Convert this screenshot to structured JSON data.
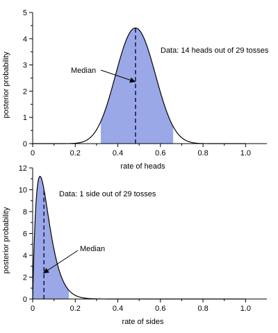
{
  "chart_data": [
    {
      "type": "area",
      "xlabel": "rate of heads",
      "ylabel": "posterior probability",
      "xlim": [
        0,
        1.1
      ],
      "ylim": [
        0,
        5
      ],
      "xticks": [
        "0",
        "0.2",
        "0.4",
        "0.6",
        "0.8",
        "1.0"
      ],
      "yticks": [
        "0",
        "1",
        "2",
        "3",
        "4",
        "5"
      ],
      "distribution": {
        "family": "beta",
        "alpha": 15,
        "beta": 16
      },
      "peak": {
        "x": 0.48,
        "y": 4.4
      },
      "shaded_interval": [
        0.32,
        0.66
      ],
      "median": 0.483,
      "annotation": "Data: 14 heads out of 29 tosses",
      "median_label": "Median",
      "fill_color": "#9aa8e8",
      "line_color": "#000000"
    },
    {
      "type": "area",
      "xlabel": "rate of sides",
      "ylabel": "posterior probability",
      "xlim": [
        0,
        1.1
      ],
      "ylim": [
        0,
        12
      ],
      "xticks": [
        "0",
        "0.2",
        "0.4",
        "0.6",
        "0.8",
        "1.0"
      ],
      "yticks": [
        "0",
        "2",
        "4",
        "6",
        "8",
        "10",
        "12"
      ],
      "distribution": {
        "family": "beta",
        "alpha": 2,
        "beta": 29
      },
      "peak": {
        "x": 0.03,
        "y": 11.3
      },
      "shaded_interval": [
        0.0,
        0.17
      ],
      "median": 0.053,
      "annotation": "Data: 1 side out of 29 tosses",
      "median_label": "Median",
      "fill_color": "#9aa8e8",
      "line_color": "#000000"
    }
  ]
}
